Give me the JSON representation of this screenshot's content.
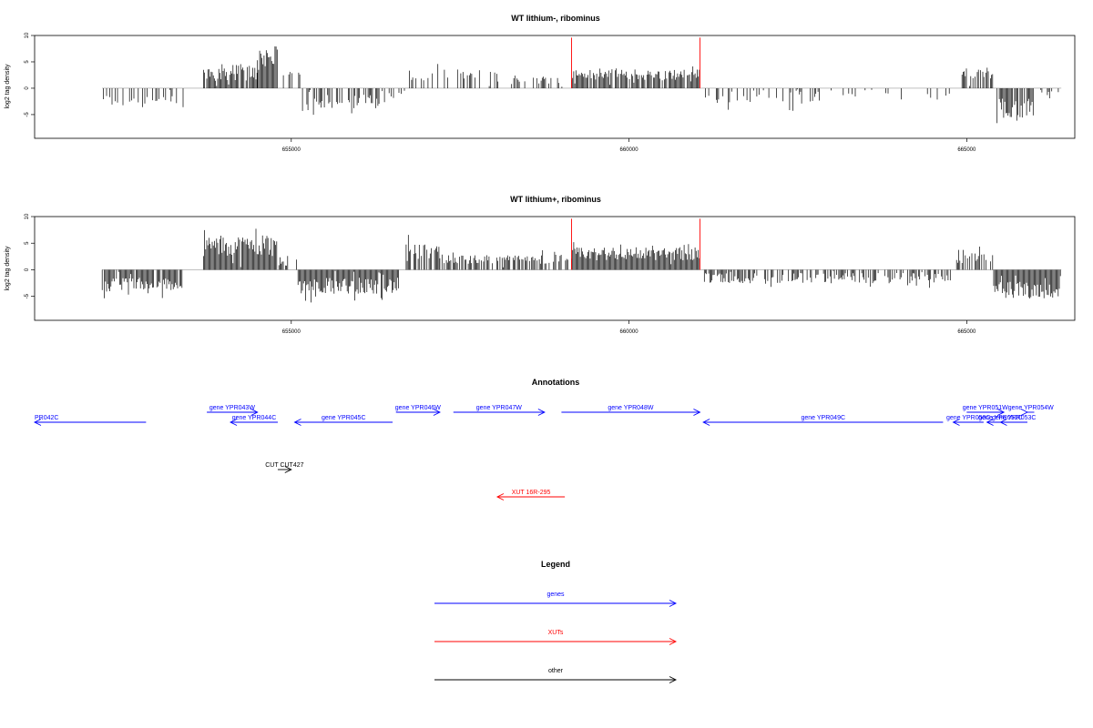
{
  "chart_data": [
    {
      "type": "bar",
      "title": "WT lithium-, ribominus",
      "ylabel": "log2 tag density",
      "xlim": [
        651200,
        666600
      ],
      "ylim": [
        -9.5,
        10
      ],
      "yticks": [
        -5,
        0,
        5,
        10
      ],
      "xticks": [
        655000,
        660000,
        665000
      ],
      "xtick_labels": [
        "655000",
        "660000",
        "665000"
      ],
      "marks": [
        659150,
        661050
      ],
      "mark_color": "#ff0000",
      "segments": [
        {
          "start": 652200,
          "end": 653400,
          "mean": -2.4,
          "spread": 1.2,
          "density": 0.35
        },
        {
          "start": 653700,
          "end": 654500,
          "mean": 3.0,
          "spread": 1.6,
          "density": 0.9
        },
        {
          "start": 654500,
          "end": 654800,
          "mean": 6.0,
          "spread": 2.0,
          "density": 1.0
        },
        {
          "start": 654850,
          "end": 655150,
          "mean": 1.5,
          "spread": 1.6,
          "density": 0.3
        },
        {
          "start": 655150,
          "end": 656400,
          "mean": -2.5,
          "spread": 1.3,
          "density": 0.55
        },
        {
          "start": 656400,
          "end": 656700,
          "mean": -1.2,
          "spread": 1.0,
          "density": 0.3
        },
        {
          "start": 656700,
          "end": 658100,
          "mean": 2.4,
          "spread": 1.2,
          "density": 0.35
        },
        {
          "start": 658100,
          "end": 659100,
          "mean": 1.8,
          "spread": 1.0,
          "density": 0.2
        },
        {
          "start": 659150,
          "end": 661050,
          "mean": 2.6,
          "spread": 1.0,
          "density": 0.9
        },
        {
          "start": 661100,
          "end": 662800,
          "mean": -1.6,
          "spread": 1.4,
          "density": 0.25
        },
        {
          "start": 662800,
          "end": 664800,
          "mean": -1.4,
          "spread": 1.0,
          "density": 0.15
        },
        {
          "start": 664850,
          "end": 665400,
          "mean": 2.8,
          "spread": 1.2,
          "density": 0.6
        },
        {
          "start": 665450,
          "end": 666000,
          "mean": -3.8,
          "spread": 1.8,
          "density": 0.9
        },
        {
          "start": 666000,
          "end": 666400,
          "mean": -1.2,
          "spread": 1.0,
          "density": 0.3
        }
      ]
    },
    {
      "type": "bar",
      "title": "WT lithium+, ribominus",
      "ylabel": "log2 tag density",
      "xlim": [
        651200,
        666600
      ],
      "ylim": [
        -9.5,
        10
      ],
      "yticks": [
        -5,
        0,
        5,
        10
      ],
      "xticks": [
        655000,
        660000,
        665000
      ],
      "xtick_labels": [
        "655000",
        "660000",
        "665000"
      ],
      "marks": [
        659150,
        661050
      ],
      "mark_color": "#ff0000",
      "segments": [
        {
          "start": 652200,
          "end": 653400,
          "mean": -2.8,
          "spread": 1.3,
          "density": 0.9
        },
        {
          "start": 653700,
          "end": 654800,
          "mean": 4.5,
          "spread": 2.0,
          "density": 1.0
        },
        {
          "start": 654800,
          "end": 655100,
          "mean": 1.5,
          "spread": 1.5,
          "density": 0.4
        },
        {
          "start": 655100,
          "end": 656600,
          "mean": -3.0,
          "spread": 1.6,
          "density": 1.0
        },
        {
          "start": 656700,
          "end": 657200,
          "mean": 3.0,
          "spread": 1.8,
          "density": 0.8
        },
        {
          "start": 657200,
          "end": 659100,
          "mean": 2.0,
          "spread": 0.9,
          "density": 0.7
        },
        {
          "start": 659150,
          "end": 661050,
          "mean": 3.0,
          "spread": 1.2,
          "density": 1.0
        },
        {
          "start": 661100,
          "end": 664800,
          "mean": -1.6,
          "spread": 1.0,
          "density": 0.6
        },
        {
          "start": 664850,
          "end": 665400,
          "mean": 2.5,
          "spread": 1.3,
          "density": 0.6
        },
        {
          "start": 665400,
          "end": 666400,
          "mean": -3.8,
          "spread": 1.6,
          "density": 1.0
        }
      ]
    }
  ],
  "annotations": {
    "title": "Annotations",
    "genes_color": "#0000ff",
    "xuts_color": "#ff0000",
    "other_color": "#000000",
    "features": [
      {
        "label": "PR042C",
        "start": 651200,
        "end": 652850,
        "strand": "-",
        "row": 2,
        "type": "gene"
      },
      {
        "label": "gene YPR043W",
        "start": 653750,
        "end": 654500,
        "strand": "+",
        "row": 1,
        "type": "gene"
      },
      {
        "label": "gene YPR044C",
        "start": 654100,
        "end": 654800,
        "strand": "-",
        "row": 2,
        "type": "gene"
      },
      {
        "label": "gene YPR045C",
        "start": 655050,
        "end": 656500,
        "strand": "-",
        "row": 2,
        "type": "gene"
      },
      {
        "label": "gene YPR046W",
        "start": 656550,
        "end": 657200,
        "strand": "+",
        "row": 1,
        "type": "gene"
      },
      {
        "label": "gene YPR047W",
        "start": 657400,
        "end": 658750,
        "strand": "+",
        "row": 1,
        "type": "gene"
      },
      {
        "label": "gene YPR048W",
        "start": 659000,
        "end": 661050,
        "strand": "+",
        "row": 1,
        "type": "gene"
      },
      {
        "label": "gene YPR049C",
        "start": 661100,
        "end": 664650,
        "strand": "-",
        "row": 2,
        "type": "gene"
      },
      {
        "label": "gene YPR050C",
        "start": 664800,
        "end": 665250,
        "strand": "-",
        "row": 2,
        "type": "gene"
      },
      {
        "label": "gene YPR051W",
        "start": 665000,
        "end": 665550,
        "strand": "+",
        "row": 1,
        "type": "gene"
      },
      {
        "label": "gene YPR052C",
        "start": 665300,
        "end": 665700,
        "strand": "-",
        "row": 2,
        "type": "gene"
      },
      {
        "label": "gene YPR053C",
        "start": 665500,
        "end": 666000,
        "strand": "-",
        "row": 2,
        "type": "gene"
      },
      {
        "label": "gene YPR054W",
        "start": 666000,
        "end": 667150,
        "strand": "+",
        "row": 1,
        "type": "gene"
      },
      {
        "label": "CUT CUT427",
        "start": 654800,
        "end": 655000,
        "strand": "+",
        "row": 3,
        "type": "other"
      },
      {
        "label": "XUT 16R-295",
        "start": 658050,
        "end": 659050,
        "strand": "-",
        "row": 4,
        "type": "xut"
      }
    ]
  },
  "legend": {
    "title": "Legend",
    "items": [
      {
        "label": "genes",
        "color": "#0000ff"
      },
      {
        "label": "XUTs",
        "color": "#ff0000"
      },
      {
        "label": "other",
        "color": "#000000"
      }
    ]
  }
}
